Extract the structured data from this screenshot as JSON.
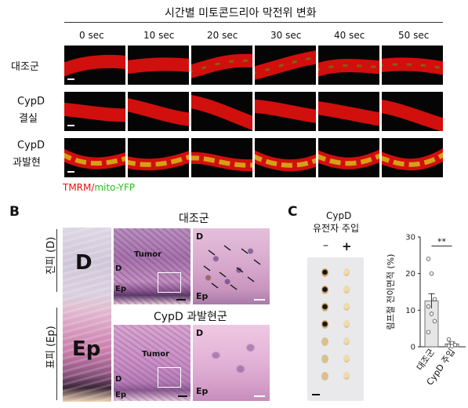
{
  "panel_a": {
    "title": "시간별 미토콘드리아 막전위 변화",
    "time_labels": [
      "0 sec",
      "10 sec",
      "20 sec",
      "30 sec",
      "40 sec",
      "50 sec"
    ],
    "rows": [
      {
        "label_1": "대조군",
        "label_2": ""
      },
      {
        "label_1": "CypD",
        "label_2": "결실"
      },
      {
        "label_1": "CypD",
        "label_2": "과발현"
      }
    ],
    "legend_red": "TMRM",
    "legend_slash": "/",
    "legend_green": "mito-YFP",
    "colors": {
      "red": "#e8110e",
      "green": "#27c21a",
      "yellow": "#d8d01a"
    }
  },
  "panel_b": {
    "letter": "B",
    "side_label_top": "진피 (D)",
    "side_label_bottom": "표피 (Ep)",
    "big_d": "D",
    "big_ep": "Ep",
    "group_control": "대조군",
    "group_overexp": "CypD 과발현군",
    "tumor_label": "Tumor",
    "d_label": "D",
    "ep_label": "Ep"
  },
  "panel_c": {
    "letter": "C",
    "header_line1": "CypD",
    "header_line2": "유전자 주입",
    "minus": "–",
    "plus": "+",
    "significance": "**",
    "chart_data": {
      "type": "bar",
      "categories": [
        "대조군",
        "CypD 주입"
      ],
      "values": [
        12.5,
        0.8
      ],
      "errors": [
        2.0,
        0.5
      ],
      "points": [
        [
          24,
          20,
          13,
          11,
          9,
          7,
          4
        ],
        [
          2,
          1,
          0.5,
          0.3,
          0.2
        ]
      ],
      "ylabel": "림프절 전이면적 (%)",
      "yticks": [
        "0",
        "10",
        "20",
        "30"
      ],
      "ylim": [
        0,
        30
      ]
    }
  }
}
